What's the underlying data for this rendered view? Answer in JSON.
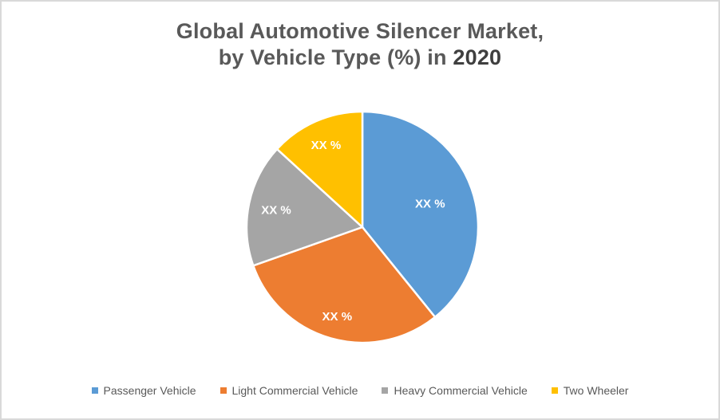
{
  "title": {
    "line1": "Global Automotive Silencer Market,",
    "line2_prefix": "by Vehicle Type (%) in ",
    "year": "2020"
  },
  "colors": {
    "background": "#ffffff",
    "canvas_border": "#d9d9d9",
    "title_text": "#595959",
    "year_text": "#3f3f3f",
    "slice_label_text": "#ffffff",
    "slice_separator": "#ffffff",
    "legend_text": "#595959",
    "series_blue": "#5B9BD5",
    "series_orange": "#ED7D31",
    "series_gray": "#A5A5A5",
    "series_yellow": "#FFC000"
  },
  "chart_data": {
    "type": "pie",
    "title": "Global Automotive Silencer Market, by Vehicle Type (%) in 2020",
    "data_labels_note": "all slice values are masked as XX %",
    "start_angle_deg": 0,
    "direction": "clockwise",
    "legend_position": "bottom",
    "slices": [
      {
        "name": "Passenger Vehicle",
        "label": "XX %",
        "percent_estimate": 39.2,
        "color": "#5B9BD5"
      },
      {
        "name": "Light Commercial Vehicle",
        "label": "XX %",
        "percent_estimate": 30.4,
        "color": "#ED7D31"
      },
      {
        "name": "Heavy Commercial Vehicle",
        "label": "XX %",
        "percent_estimate": 17.2,
        "color": "#A5A5A5"
      },
      {
        "name": "Two Wheeler",
        "label": "XX %",
        "percent_estimate": 13.2,
        "color": "#FFC000"
      }
    ]
  },
  "legend": {
    "items": [
      {
        "label": "Passenger Vehicle",
        "color": "#5B9BD5"
      },
      {
        "label": "Light Commercial Vehicle",
        "color": "#ED7D31"
      },
      {
        "label": "Heavy Commercial Vehicle",
        "color": "#A5A5A5"
      },
      {
        "label": "Two Wheeler",
        "color": "#FFC000"
      }
    ]
  }
}
